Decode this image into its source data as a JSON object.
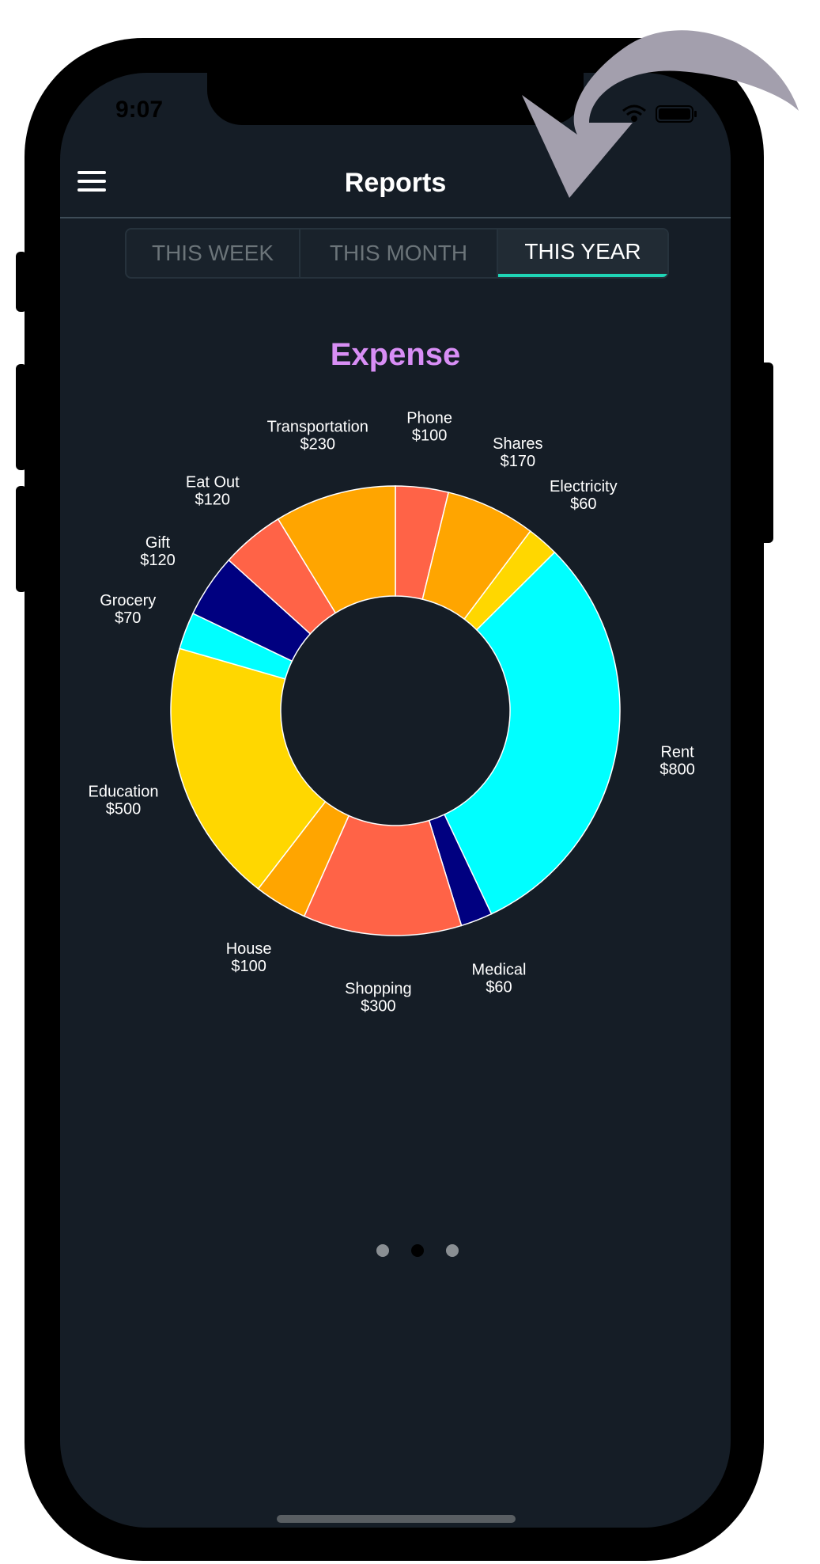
{
  "status_bar": {
    "time": "9:07",
    "icons": [
      "wifi-icon",
      "battery-icon"
    ]
  },
  "header": {
    "title": "Reports",
    "menu_icon": "hamburger-menu-icon"
  },
  "period_tabs": [
    {
      "label": "THIS WEEK",
      "active": false
    },
    {
      "label": "THIS MONTH",
      "active": false
    },
    {
      "label": "THIS YEAR",
      "active": true
    }
  ],
  "chart_title": "Expense",
  "chart_data": {
    "type": "pie",
    "title": "Expense",
    "donut": true,
    "slices": [
      {
        "label": "Phone",
        "value_label": "$100",
        "value": 100,
        "color": "#ff6347"
      },
      {
        "label": "Shares",
        "value_label": "$170",
        "value": 170,
        "color": "#ffa500"
      },
      {
        "label": "Electricity",
        "value_label": "$60",
        "value": 60,
        "color": "#ffd700"
      },
      {
        "label": "Rent",
        "value_label": "$800",
        "value": 800,
        "color": "#00ffff"
      },
      {
        "label": "Medical",
        "value_label": "$60",
        "value": 60,
        "color": "#000080"
      },
      {
        "label": "Shopping",
        "value_label": "$300",
        "value": 300,
        "color": "#ff6347"
      },
      {
        "label": "House",
        "value_label": "$100",
        "value": 100,
        "color": "#ffa500"
      },
      {
        "label": "Education",
        "value_label": "$500",
        "value": 500,
        "color": "#ffd700"
      },
      {
        "label": "Grocery",
        "value_label": "$70",
        "value": 70,
        "color": "#00ffff"
      },
      {
        "label": "Gift",
        "value_label": "$120",
        "value": 120,
        "color": "#000080"
      },
      {
        "label": "Eat Out",
        "value_label": "$120",
        "value": 120,
        "color": "#ff6347"
      },
      {
        "label": "Transportation",
        "value_label": "$230",
        "value": 230,
        "color": "#ffa500"
      }
    ]
  },
  "pager": {
    "count": 3,
    "active_index": 1
  },
  "colors": {
    "background": "#151d26",
    "accent": "#1fd5b6",
    "title_accent": "#d88ef5",
    "annotation_arrow": "#a39fad"
  }
}
